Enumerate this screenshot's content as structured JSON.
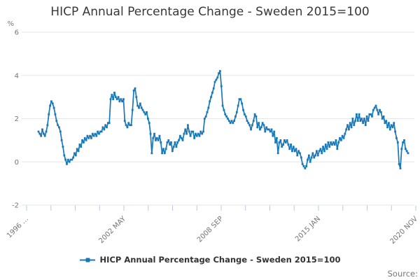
{
  "title": "HICP Annual Percentage Change - Sweden 2015=100",
  "y_axis": {
    "unit": "%",
    "ticks": [
      6,
      4,
      2,
      0,
      -2
    ]
  },
  "x_axis": {
    "labels": [
      "1996 …",
      "2002 MAY",
      "2008 SEP",
      "2015 JAN",
      "2020 NOV"
    ]
  },
  "legend": {
    "label": "HICP Annual Percentage Change - Sweden 2015=100"
  },
  "source": {
    "label": "Source:"
  },
  "colors": {
    "series": "#1878b8",
    "grid": "#e6e6e6",
    "tick": "#bdc9e0",
    "axis_text": "#757575",
    "title_text": "#383838",
    "legend_text": "#333333",
    "source_text": "#777777"
  },
  "chart_data": {
    "type": "line",
    "title": "HICP Annual Percentage Change - Sweden 2015=100",
    "series_name": "HICP Annual Percentage Change - Sweden 2015=100",
    "unit": "%",
    "frequency": "monthly",
    "period_start": "1996-12",
    "period_end": "2020-11",
    "ylim": [
      -2,
      6
    ],
    "grid": true,
    "legend_position": "bottom",
    "marker": "square",
    "x_tick_labels": [
      "1996 …",
      "2002 MAY",
      "2008 SEP",
      "2015 JAN",
      "2020 NOV"
    ],
    "x_label_tick_indices": [
      0,
      4,
      8,
      12,
      16
    ],
    "minor_ticks": 17,
    "values": [
      1.4,
      1.3,
      1.2,
      1.5,
      1.3,
      1.2,
      1.4,
      1.7,
      2.2,
      2.6,
      2.8,
      2.7,
      2.5,
      2.2,
      1.9,
      1.7,
      1.6,
      1.4,
      1.0,
      0.7,
      0.3,
      0.1,
      -0.1,
      0.1,
      0.0,
      0.1,
      0.1,
      0.2,
      0.4,
      0.3,
      0.6,
      0.5,
      0.8,
      0.7,
      1.0,
      0.9,
      1.1,
      1.0,
      1.2,
      1.1,
      1.2,
      1.1,
      1.3,
      1.2,
      1.3,
      1.2,
      1.4,
      1.3,
      1.4,
      1.4,
      1.6,
      1.5,
      1.7,
      1.6,
      1.8,
      1.8,
      2.9,
      3.1,
      2.9,
      3.2,
      3.0,
      2.9,
      3.0,
      2.8,
      2.9,
      2.8,
      2.9,
      1.9,
      1.7,
      1.6,
      1.8,
      1.7,
      1.7,
      2.4,
      3.3,
      3.4,
      3.0,
      2.6,
      2.5,
      2.7,
      2.5,
      2.4,
      2.3,
      2.2,
      2.3,
      2.0,
      1.8,
      1.3,
      0.4,
      1.1,
      1.3,
      1.0,
      1.1,
      1.0,
      1.2,
      0.9,
      0.4,
      0.6,
      0.4,
      0.6,
      0.9,
      1.0,
      0.8,
      0.9,
      0.5,
      0.7,
      0.9,
      0.7,
      0.9,
      1.0,
      1.2,
      1.1,
      1.0,
      1.3,
      1.5,
      1.3,
      1.7,
      1.4,
      1.2,
      1.4,
      1.4,
      1.1,
      1.3,
      1.2,
      1.3,
      1.2,
      1.4,
      1.3,
      1.4,
      2.0,
      2.1,
      2.3,
      2.5,
      2.8,
      3.0,
      3.2,
      3.4,
      3.7,
      3.8,
      3.9,
      4.1,
      4.2,
      3.5,
      2.6,
      2.4,
      2.2,
      2.1,
      2.0,
      1.9,
      1.8,
      1.9,
      1.8,
      1.9,
      2.1,
      2.3,
      2.6,
      2.9,
      2.9,
      2.7,
      2.4,
      2.2,
      2.1,
      1.9,
      1.8,
      1.7,
      1.5,
      1.7,
      1.9,
      2.2,
      2.1,
      1.6,
      1.8,
      1.5,
      1.6,
      1.8,
      1.7,
      1.4,
      1.6,
      1.5,
      1.5,
      1.4,
      1.5,
      1.2,
      1.4,
      0.9,
      1.1,
      0.4,
      0.9,
      1.0,
      0.7,
      0.8,
      1.0,
      0.9,
      1.0,
      0.8,
      0.6,
      0.8,
      0.5,
      0.7,
      0.5,
      0.6,
      0.3,
      0.5,
      0.4,
      0.2,
      -0.1,
      -0.2,
      -0.3,
      -0.2,
      0.1,
      0.3,
      0.0,
      0.2,
      0.4,
      0.2,
      0.3,
      0.5,
      0.3,
      0.5,
      0.6,
      0.4,
      0.7,
      0.5,
      0.8,
      0.6,
      0.9,
      0.7,
      0.9,
      0.8,
      0.9,
      0.8,
      1.0,
      0.6,
      0.9,
      1.1,
      1.0,
      1.2,
      1.1,
      1.3,
      1.5,
      1.7,
      1.5,
      1.8,
      1.6,
      2.0,
      1.7,
      1.9,
      2.2,
      1.9,
      2.2,
      1.9,
      2.0,
      1.8,
      2.0,
      1.7,
      2.1,
      1.9,
      2.2,
      2.2,
      2.1,
      2.4,
      2.5,
      2.6,
      2.4,
      2.2,
      2.4,
      2.3,
      2.0,
      2.1,
      1.8,
      1.9,
      1.6,
      1.8,
      1.5,
      1.7,
      1.6,
      1.8,
      1.4,
      1.1,
      0.9,
      -0.1,
      -0.3,
      0.6,
      0.9,
      1.0,
      0.6,
      0.5,
      0.4
    ]
  }
}
